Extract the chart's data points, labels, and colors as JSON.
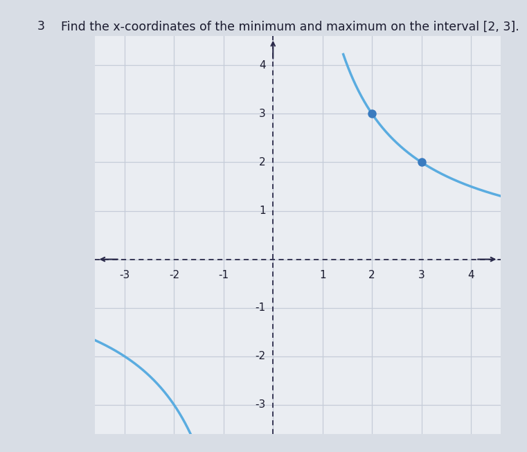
{
  "title": "Find the x-coordinates of the minimum and maximum on the interval [2, 3].",
  "question_number": "3",
  "curve_color": "#5aace0",
  "point_color": "#3a7bbf",
  "point1": [
    2,
    3
  ],
  "point2": [
    3,
    2
  ],
  "xlim": [
    -3.6,
    4.6
  ],
  "ylim": [
    -3.6,
    4.6
  ],
  "xticks": [
    -3,
    -2,
    -1,
    1,
    2,
    3,
    4
  ],
  "yticks": [
    -3,
    -2,
    -1,
    1,
    2,
    3,
    4
  ],
  "grid_color": "#c5ccd8",
  "axis_color": "#2a2a4a",
  "background_color": "#d8dde5",
  "panel_color": "#eaedf2",
  "font_color": "#1a1a2e",
  "x_curve1_start": 1.42,
  "x_curve1_end": 4.6,
  "x_curve2_start": -3.6,
  "x_curve2_end": -0.9
}
